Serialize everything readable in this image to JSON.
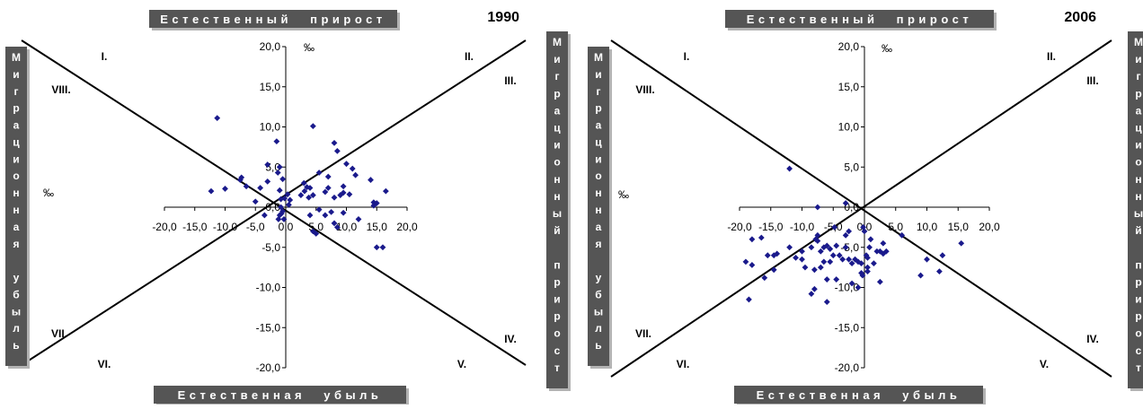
{
  "chart_data": [
    {
      "type": "scatter",
      "year": "1990",
      "top_banner": "Естественный прирост",
      "bottom_banner": "Естественная убыль",
      "left_banner": "Миграционная убыль",
      "right_banner": "Миграционный прирост",
      "x_unit": "‰",
      "y_unit": "‰",
      "xlim": [
        -20,
        20
      ],
      "ylim": [
        -20,
        20
      ],
      "x_ticks": [
        "-20,0",
        "-15,0",
        "-10,0",
        "-5,0",
        "0,0",
        "5,0",
        "10,0",
        "15,0",
        "20,0"
      ],
      "y_ticks": [
        "-20,0",
        "-15,0",
        "-10,0",
        "-5,0",
        "0,0",
        "5,0",
        "10,0",
        "15,0",
        "20,0"
      ],
      "sectors": [
        "I.",
        "II.",
        "III.",
        "IV.",
        "V.",
        "VI.",
        "VII.",
        "VIII."
      ],
      "points": [
        [
          -11.3,
          11.1
        ],
        [
          -12.3,
          2.0
        ],
        [
          -10.0,
          2.3
        ],
        [
          -7.5,
          3.4
        ],
        [
          -7.3,
          3.7
        ],
        [
          -6.5,
          2.6
        ],
        [
          -5.0,
          0.7
        ],
        [
          -4.2,
          2.4
        ],
        [
          -3.5,
          -1.0
        ],
        [
          -3.0,
          5.3
        ],
        [
          -3.0,
          3.2
        ],
        [
          -1.5,
          8.2
        ],
        [
          -1.3,
          4.3
        ],
        [
          -1.0,
          5.0
        ],
        [
          -1.0,
          2.1
        ],
        [
          -0.8,
          1.0
        ],
        [
          -0.5,
          3.5
        ],
        [
          -0.8,
          0.0
        ],
        [
          -0.5,
          -0.5
        ],
        [
          -0.7,
          -0.8
        ],
        [
          -1.0,
          -1.0
        ],
        [
          -1.2,
          -1.5
        ],
        [
          -0.3,
          -1.5
        ],
        [
          -0.2,
          1.1
        ],
        [
          0.3,
          1.6
        ],
        [
          0.5,
          0.3
        ],
        [
          0.7,
          0.9
        ],
        [
          2.5,
          1.5
        ],
        [
          3.0,
          3.0
        ],
        [
          3.1,
          2.0
        ],
        [
          3.5,
          2.5
        ],
        [
          3.8,
          1.2
        ],
        [
          4.0,
          2.4
        ],
        [
          4.0,
          -1.0
        ],
        [
          4.5,
          10.1
        ],
        [
          4.5,
          1.5
        ],
        [
          4.5,
          -3.0
        ],
        [
          5.0,
          -3.3
        ],
        [
          5.5,
          4.3
        ],
        [
          5.5,
          -0.3
        ],
        [
          6.5,
          1.9
        ],
        [
          6.5,
          -1.0
        ],
        [
          7.0,
          3.8
        ],
        [
          7.0,
          2.4
        ],
        [
          7.5,
          -0.6
        ],
        [
          8.0,
          8.0
        ],
        [
          8.0,
          1.2
        ],
        [
          8.5,
          7.0
        ],
        [
          8.5,
          -2.5
        ],
        [
          8.0,
          -2.0
        ],
        [
          9.0,
          1.5
        ],
        [
          9.5,
          1.8
        ],
        [
          9.5,
          2.6
        ],
        [
          9.5,
          -0.7
        ],
        [
          10.0,
          5.4
        ],
        [
          10.5,
          1.6
        ],
        [
          11.0,
          4.8
        ],
        [
          11.5,
          4.0
        ],
        [
          12.0,
          -1.5
        ],
        [
          14.0,
          3.4
        ],
        [
          14.5,
          0.6
        ],
        [
          14.5,
          0.2
        ],
        [
          15.0,
          0.5
        ],
        [
          15.0,
          -5.0
        ],
        [
          16.0,
          -5.0
        ],
        [
          16.5,
          2.0
        ]
      ]
    },
    {
      "type": "scatter",
      "year": "2006",
      "top_banner": "Естественный прирост",
      "bottom_banner": "Естественная убыль",
      "left_banner": "Миграционная убыль",
      "right_banner": "Миграционный прирост",
      "x_unit": "‰",
      "y_unit": "‰",
      "xlim": [
        -20,
        20
      ],
      "ylim": [
        -20,
        20
      ],
      "x_ticks": [
        "-20,0",
        "-15,0",
        "-10,0",
        "-5,0",
        "0,0",
        "5,0",
        "10,0",
        "15,0",
        "20,0"
      ],
      "y_ticks": [
        "-20,0",
        "-15,0",
        "-10,0",
        "-5,0",
        "0,0",
        "5,0",
        "10,0",
        "15,0",
        "20,0"
      ],
      "sectors": [
        "I.",
        "II.",
        "III.",
        "IV.",
        "V.",
        "VI.",
        "VII.",
        "VIII."
      ],
      "points": [
        [
          -18.5,
          -11.5
        ],
        [
          -19.0,
          -6.8
        ],
        [
          -18.0,
          -7.2
        ],
        [
          -18.0,
          -4.0
        ],
        [
          -16.5,
          -3.8
        ],
        [
          -16.0,
          -8.8
        ],
        [
          -15.5,
          -6.0
        ],
        [
          -14.5,
          -7.8
        ],
        [
          -14.5,
          -6.0
        ],
        [
          -14.0,
          -5.8
        ],
        [
          -12.0,
          4.8
        ],
        [
          -12.0,
          -5.0
        ],
        [
          -11.0,
          -6.3
        ],
        [
          -10.0,
          -5.5
        ],
        [
          -10.0,
          -6.5
        ],
        [
          -9.5,
          -7.5
        ],
        [
          -8.5,
          -5.0
        ],
        [
          -8.5,
          -10.8
        ],
        [
          -8.0,
          -7.8
        ],
        [
          -8.0,
          -10.2
        ],
        [
          -7.8,
          -4.0
        ],
        [
          -7.5,
          0.0
        ],
        [
          -7.5,
          -3.5
        ],
        [
          -7.5,
          -4.2
        ],
        [
          -7.0,
          -5.5
        ],
        [
          -7.0,
          -7.5
        ],
        [
          -6.5,
          -5.0
        ],
        [
          -6.5,
          -6.8
        ],
        [
          -6.0,
          -4.8
        ],
        [
          -6.0,
          -9.0
        ],
        [
          -6.0,
          -11.8
        ],
        [
          -5.5,
          -5.2
        ],
        [
          -5.5,
          -6.8
        ],
        [
          -5.0,
          -6.0
        ],
        [
          -4.8,
          -2.5
        ],
        [
          -4.5,
          -4.8
        ],
        [
          -4.5,
          -9.0
        ],
        [
          -4.0,
          -6.0
        ],
        [
          -3.5,
          -6.5
        ],
        [
          -3.0,
          0.5
        ],
        [
          -3.0,
          -3.5
        ],
        [
          -3.0,
          -5.0
        ],
        [
          -2.5,
          -3.0
        ],
        [
          -2.5,
          -6.5
        ],
        [
          -2.0,
          -7.0
        ],
        [
          -2.0,
          -9.5
        ],
        [
          -1.5,
          -6.5
        ],
        [
          -1.0,
          -6.8
        ],
        [
          -1.0,
          -10.0
        ],
        [
          -0.5,
          -7.0
        ],
        [
          -0.5,
          -8.2
        ],
        [
          -0.3,
          -8.5
        ],
        [
          -0.2,
          -2.5
        ],
        [
          0.0,
          -3.0
        ],
        [
          0.3,
          -6.0
        ],
        [
          0.5,
          -7.5
        ],
        [
          0.5,
          -8.0
        ],
        [
          0.5,
          -6.3
        ],
        [
          0.8,
          -5.0
        ],
        [
          1.0,
          -4.0
        ],
        [
          1.5,
          -7.0
        ],
        [
          2.0,
          -5.5
        ],
        [
          2.5,
          -9.3
        ],
        [
          2.5,
          -5.5
        ],
        [
          3.0,
          -4.5
        ],
        [
          3.0,
          -5.8
        ],
        [
          3.5,
          -5.5
        ],
        [
          6.0,
          -3.5
        ],
        [
          9.0,
          -8.5
        ],
        [
          10.0,
          -6.5
        ],
        [
          12.0,
          -8.0
        ],
        [
          12.5,
          -6.0
        ],
        [
          15.5,
          -4.5
        ]
      ]
    }
  ]
}
